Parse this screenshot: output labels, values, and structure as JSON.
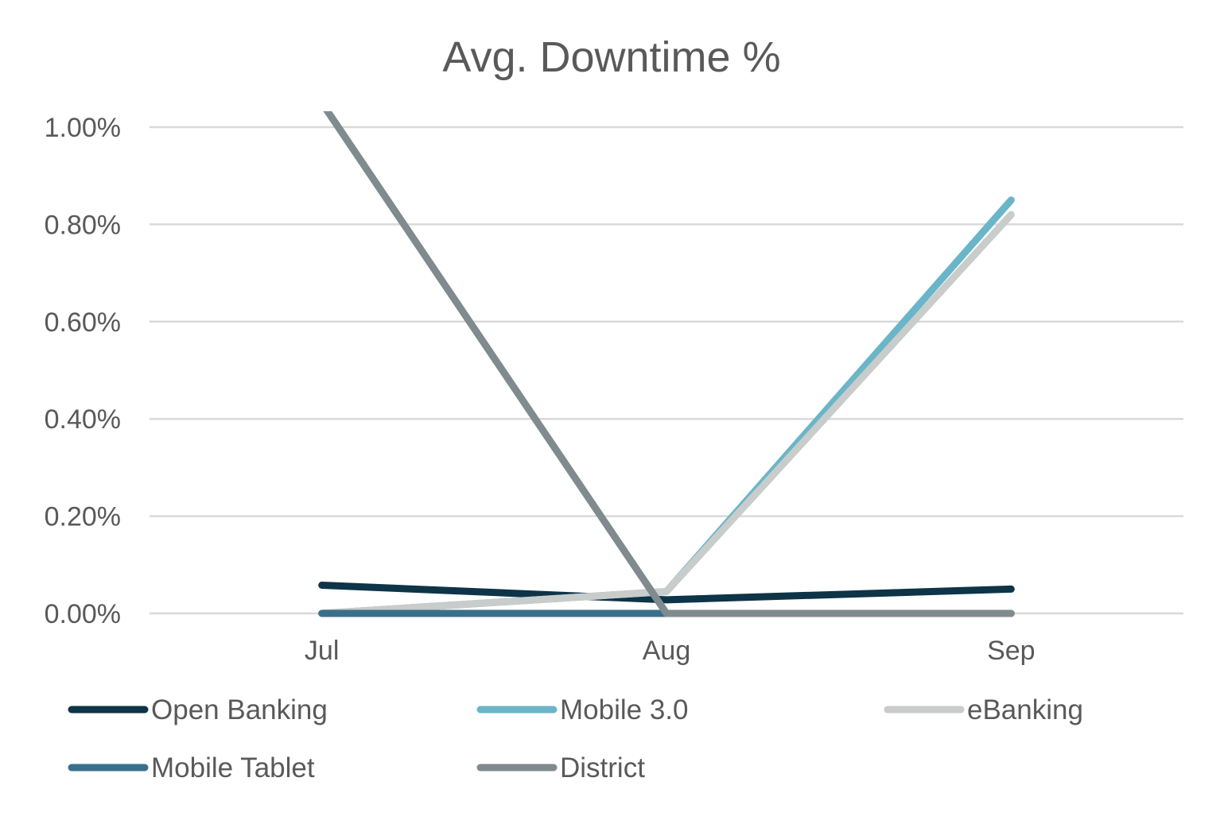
{
  "chart_data": {
    "type": "line",
    "title": "Avg. Downtime %",
    "xlabel": "",
    "ylabel": "",
    "categories": [
      "Jul",
      "Aug",
      "Sep"
    ],
    "ylim": [
      0,
      1.0
    ],
    "y_ticks": [
      0,
      0.2,
      0.4,
      0.6,
      0.8,
      1.0
    ],
    "y_tick_labels": [
      "0.00%",
      "0.20%",
      "0.40%",
      "0.60%",
      "0.80%",
      "1.00%"
    ],
    "y_unit": "%",
    "grid": true,
    "legend_position": "bottom",
    "series": [
      {
        "name": "Open Banking",
        "color": "#0d3447",
        "values": [
          0.058,
          0.028,
          0.05
        ]
      },
      {
        "name": "Mobile 3.0",
        "color": "#6bb5c8",
        "values": [
          0.0,
          0.045,
          0.85
        ]
      },
      {
        "name": "eBanking",
        "color": "#c8cccb",
        "values": [
          0.0,
          0.045,
          0.82
        ]
      },
      {
        "name": "Mobile Tablet",
        "color": "#3a6f8c",
        "values": [
          0.0,
          0.0,
          0.0
        ]
      },
      {
        "name": "District",
        "color": "#7f8b8e",
        "values": [
          1.05,
          0.0,
          0.0
        ]
      }
    ]
  }
}
